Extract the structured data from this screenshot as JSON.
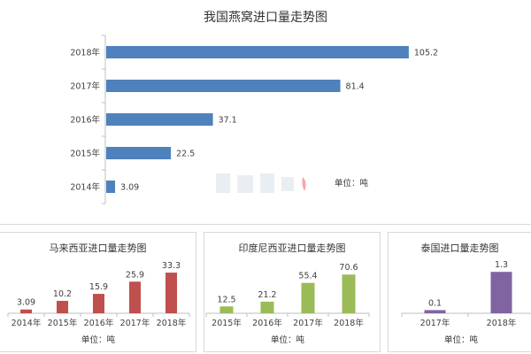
{
  "chart_data": [
    {
      "type": "bar",
      "orientation": "horizontal",
      "title": "我国燕窝进口量走势图",
      "categories": [
        "2018年",
        "2017年",
        "2016年",
        "2015年",
        "2014年"
      ],
      "values": [
        105.2,
        81.4,
        37.1,
        22.5,
        3.09
      ],
      "value_labels": [
        "105.2",
        "81.4",
        "37.1",
        "22.5",
        "3.09"
      ],
      "unit_label": "单位：吨",
      "color": "#4f81bd"
    },
    {
      "type": "bar",
      "title": "马来西亚进口量走势图",
      "categories": [
        "2014年",
        "2015年",
        "2016年",
        "2017年",
        "2018年"
      ],
      "values": [
        3.09,
        10.2,
        15.9,
        25.9,
        33.3
      ],
      "value_labels": [
        "3.09",
        "10.2",
        "15.9",
        "25.9",
        "33.3"
      ],
      "unit_label": "单位：吨",
      "color": "#c0504d"
    },
    {
      "type": "bar",
      "title": "印度尼西亚进口量走势图",
      "categories": [
        "2015年",
        "2016年",
        "2017年",
        "2018年"
      ],
      "values": [
        12.5,
        21.2,
        55.4,
        70.6
      ],
      "value_labels": [
        "12.5",
        "21.2",
        "55.4",
        "70.6"
      ],
      "unit_label": "单位：吨",
      "color": "#9bbb59"
    },
    {
      "type": "bar",
      "title": "泰国进口量走势图",
      "categories": [
        "2017年",
        "2018年"
      ],
      "values": [
        0.1,
        1.3
      ],
      "value_labels": [
        "0.1",
        "1.3"
      ],
      "unit_label": "单位：吨",
      "color": "#8064a2"
    }
  ],
  "watermark": {
    "text": "楼上楼下",
    "color": "#e9eef3",
    "accent": "#f4a6ac"
  }
}
